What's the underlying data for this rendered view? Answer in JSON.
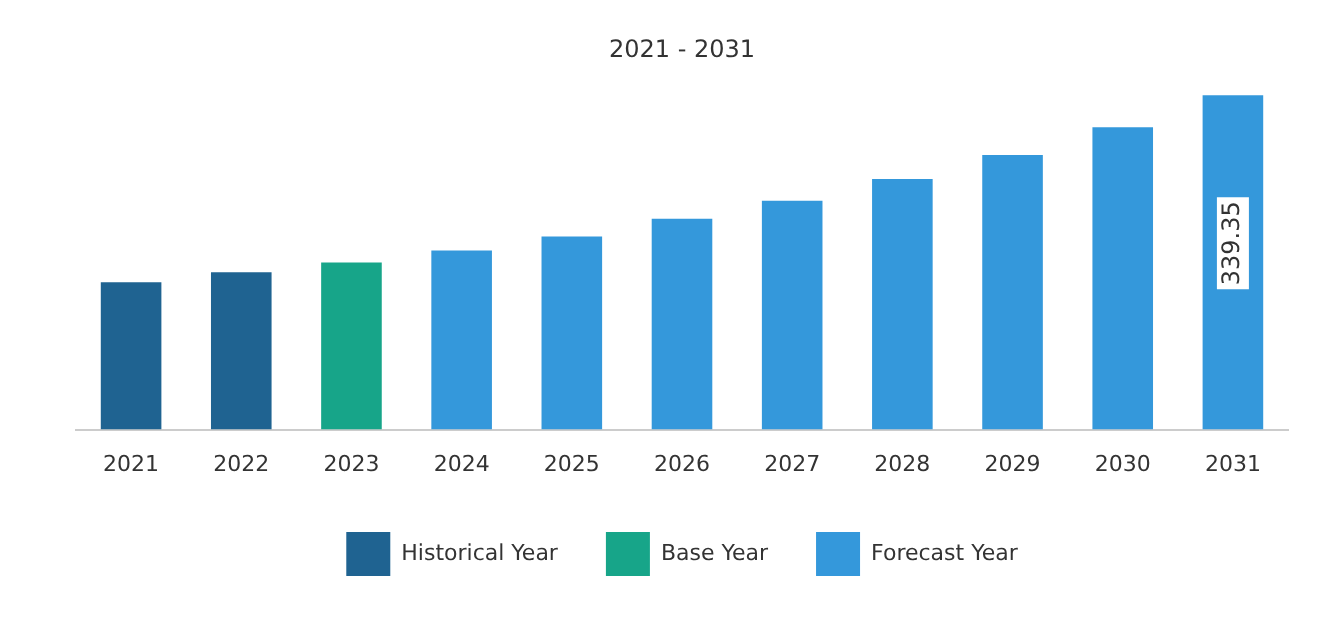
{
  "chart_data": {
    "type": "bar",
    "title": "2021 - 2031",
    "tick_labels": "x",
    "categories": [
      "2021",
      "2022",
      "2023",
      "2024",
      "2025",
      "2026",
      "2027",
      "2028",
      "2029",
      "2030",
      "2031"
    ],
    "series": [
      {
        "name": "Historical Year",
        "color": "#1f6391",
        "values": [
          149.5,
          159.6,
          null,
          null,
          null,
          null,
          null,
          null,
          null,
          null,
          null
        ]
      },
      {
        "name": "Base Year",
        "color": "#17a589",
        "values": [
          null,
          null,
          169.7,
          null,
          null,
          null,
          null,
          null,
          null,
          null,
          null
        ]
      },
      {
        "name": "Forecast Year",
        "color": "#3498db",
        "values": [
          null,
          null,
          null,
          181.8,
          195.9,
          214.1,
          232.3,
          254.5,
          278.8,
          307.0,
          339.35
        ],
        "value_labels": [
          null,
          null,
          null,
          null,
          null,
          null,
          null,
          null,
          null,
          null,
          "339.35"
        ]
      }
    ],
    "grid": false,
    "legend": "bottom"
  }
}
